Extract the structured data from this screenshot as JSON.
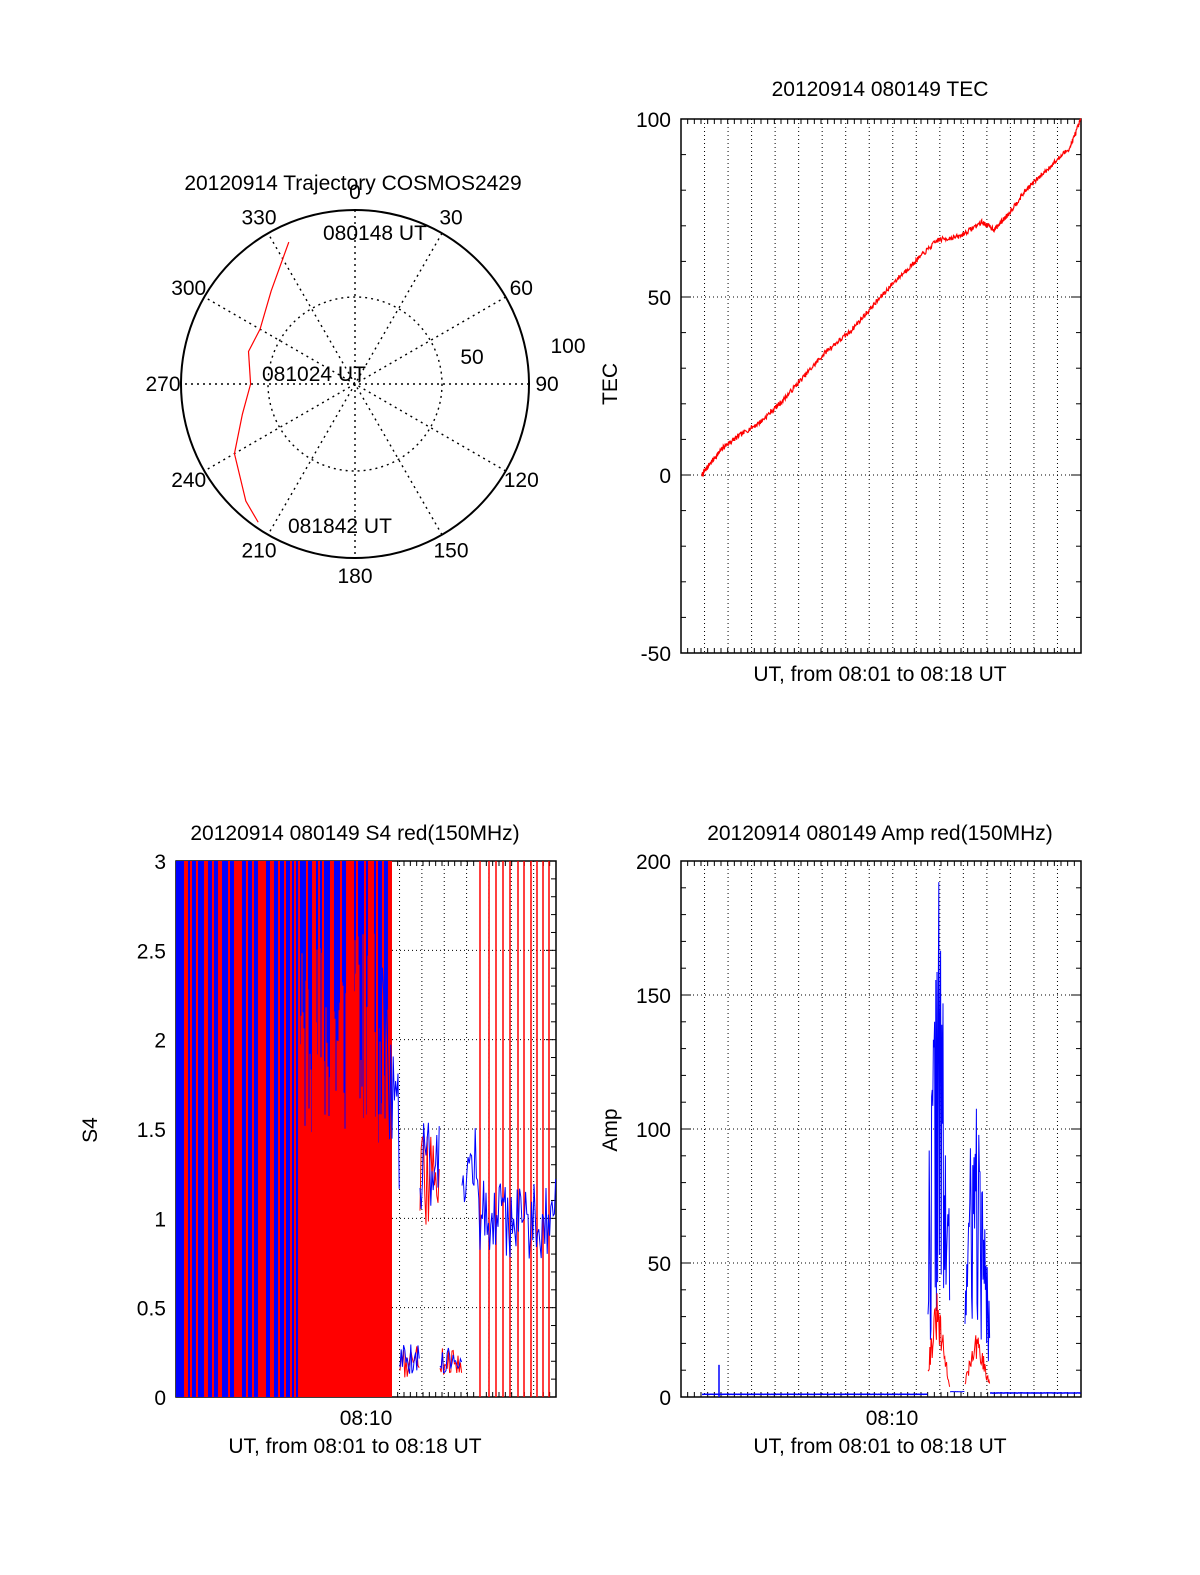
{
  "colors": {
    "red": "#ff0000",
    "blue": "#0000ff",
    "axis": "#000000",
    "grid": "#000000"
  },
  "chart_data": [
    {
      "type": "polar",
      "title": "20120914 Trajectory COSMOS2429",
      "azimuth_labels": [
        "0",
        "30",
        "60",
        "90",
        "120",
        "150",
        "180",
        "210",
        "240",
        "270",
        "300",
        "330"
      ],
      "radial_labels": [
        "50",
        "100"
      ],
      "radial_range": [
        0,
        100
      ],
      "grid": true,
      "series": [
        {
          "color": "#ff0000",
          "points": [
            [
              335,
              90
            ],
            [
              318,
              72
            ],
            [
              300,
              63
            ],
            [
              287,
              64
            ],
            [
              270,
              60
            ],
            [
              255,
              67
            ],
            [
              240,
              80
            ],
            [
              223,
              92
            ],
            [
              215,
              97
            ]
          ]
        }
      ],
      "annotations": [
        {
          "text": "080148 UT",
          "az": 335,
          "r": 90
        },
        {
          "text": "081024 UT",
          "az": 272,
          "r": 6
        },
        {
          "text": "081842 UT",
          "az": 218,
          "r": 90
        }
      ]
    },
    {
      "type": "line",
      "title": "20120914 080149 TEC",
      "xlabel": "UT, from 08:01 to 08:18 UT",
      "ylabel": "TEC",
      "xlim": [
        0,
        1030
      ],
      "ylim": [
        -50,
        100
      ],
      "yticks": [
        "-50",
        "0",
        "50",
        "100"
      ],
      "grid": true,
      "series": [
        {
          "color": "#ff0000",
          "x": [
            0,
            20,
            60,
            100,
            160,
            220,
            280,
            340,
            400,
            460,
            520,
            580,
            640,
            700,
            760,
            795,
            830,
            880,
            940,
            1000,
            1030
          ],
          "y": [
            0,
            3,
            8,
            11,
            15,
            21,
            28,
            35,
            40,
            47,
            54,
            60,
            66,
            67,
            71,
            69,
            73,
            80,
            86,
            92,
            100
          ]
        }
      ]
    },
    {
      "type": "line",
      "title": "20120914 080149 S4 red(150MHz)",
      "xlabel": "UT, from 08:01 to 08:18 UT",
      "ylabel": "S4",
      "xtick_labels": [
        "08:10"
      ],
      "xlim": [
        0,
        1030
      ],
      "ylim": [
        0,
        3
      ],
      "yticks": [
        "0",
        "0.5",
        "1",
        "1.5",
        "2",
        "2.5",
        "3"
      ],
      "grid": true,
      "series": [
        {
          "color": "#ff0000",
          "x": [],
          "y": []
        },
        {
          "color": "#0000ff",
          "x": [],
          "y": []
        }
      ]
    },
    {
      "type": "line",
      "title": "20120914 080149 Amp red(150MHz)",
      "xlabel": "UT, from 08:01 to 08:18 UT",
      "ylabel": "Amp",
      "xtick_labels": [
        "08:10"
      ],
      "xlim": [
        0,
        1030
      ],
      "ylim": [
        0,
        200
      ],
      "yticks": [
        "0",
        "50",
        "100",
        "150",
        "200"
      ],
      "grid": true,
      "series": [
        {
          "color": "#0000ff",
          "x": [],
          "y": []
        },
        {
          "color": "#ff0000",
          "x": [],
          "y": []
        }
      ]
    }
  ]
}
